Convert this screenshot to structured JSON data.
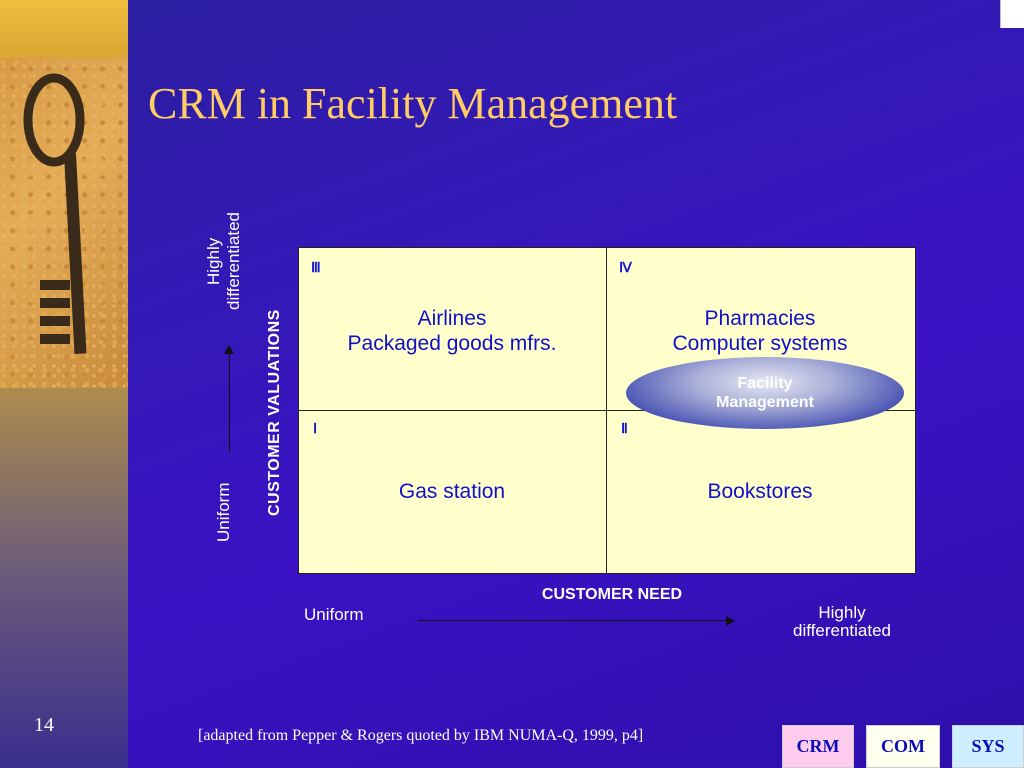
{
  "slide": {
    "title": "CRM in Facility Management",
    "number": "14",
    "citation": "[adapted from Pepper & Rogers quoted by IBM NUMA-Q, 1999, p4]"
  },
  "matrix": {
    "y_axis": {
      "title": "CUSTOMER VALUATIONS",
      "low": "Uniform",
      "high": "Highly differentiated"
    },
    "x_axis": {
      "title": "CUSTOMER NEED",
      "low": "Uniform",
      "high": "Highly differentiated"
    },
    "quadrants": {
      "top_left": {
        "numeral": "Ⅲ",
        "line1": "Airlines",
        "line2": "Packaged goods mfrs."
      },
      "top_right": {
        "numeral": "Ⅳ",
        "line1": "Pharmacies",
        "line2": "Computer systems"
      },
      "bottom_left": {
        "numeral": "Ⅰ",
        "line1": "Gas station"
      },
      "bottom_right": {
        "numeral": "Ⅱ",
        "line1": "Bookstores"
      }
    },
    "highlight": {
      "line1": "Facility",
      "line2": "Management"
    }
  },
  "nav": {
    "crm": "CRM",
    "com": "COM",
    "sys": "SYS"
  },
  "colors": {
    "title": "#ffcc66",
    "matrix_fill": "#ffffcc",
    "quadrant_text": "#1010c8",
    "background": "#3418b8"
  }
}
